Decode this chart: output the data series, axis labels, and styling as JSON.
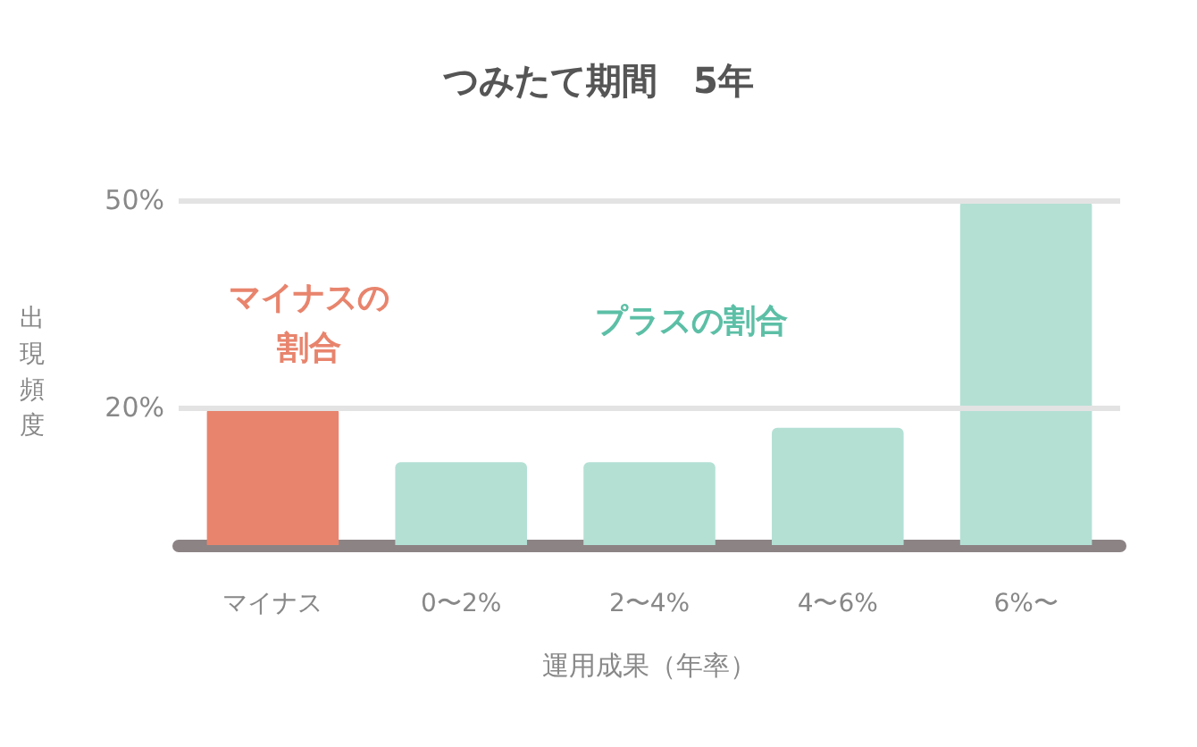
{
  "chart_data": {
    "type": "bar",
    "title": "つみたて期間　5年",
    "xlabel": "運用成果（年率）",
    "ylabel": "出現頻度",
    "categories": [
      "マイナス",
      "0〜2%",
      "2〜4%",
      "4〜6%",
      "6%〜"
    ],
    "values": [
      20,
      12,
      12,
      17,
      50
    ],
    "colors": [
      "#e8846d",
      "#b4e0d4",
      "#b4e0d4",
      "#b4e0d4",
      "#b4e0d4"
    ],
    "ylim": [
      0,
      50
    ],
    "yticks": [
      {
        "value": 20,
        "label": "20%"
      },
      {
        "value": 50,
        "label": "50%"
      }
    ],
    "grid": "y",
    "annotations": [
      "マイナスの割合",
      "プラスの割合"
    ]
  }
}
